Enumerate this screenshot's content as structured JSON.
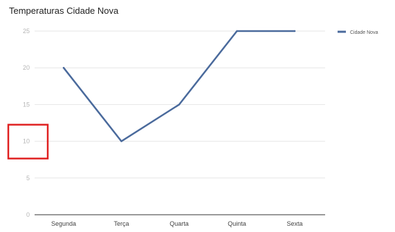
{
  "chart_data": {
    "type": "line",
    "title": "Temperaturas Cidade Nova",
    "categories": [
      "Segunda",
      "Terça",
      "Quarta",
      "Quinta",
      "Sexta"
    ],
    "series": [
      {
        "name": "Cidade Nova",
        "values": [
          20,
          10,
          15,
          25,
          25
        ],
        "color": "#4a6a9c"
      }
    ],
    "yticks": [
      0,
      5,
      10,
      15,
      20,
      25
    ],
    "ylim": [
      0,
      25
    ],
    "grid": true,
    "legend": "right",
    "highlight": {
      "label": "10",
      "color": "#e02020"
    }
  }
}
